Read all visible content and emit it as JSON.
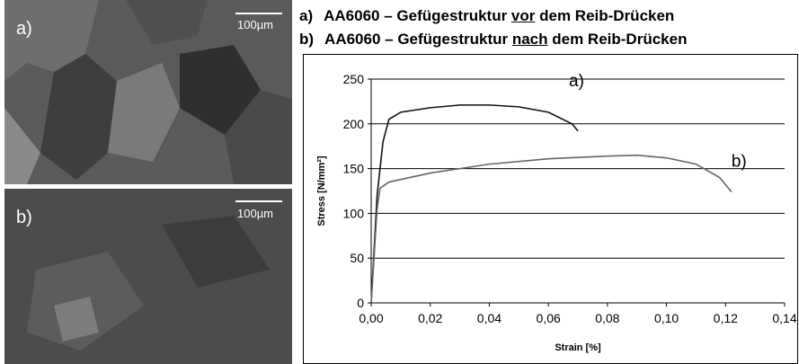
{
  "images": [
    {
      "label": "a)",
      "scale": "100µm"
    },
    {
      "label": "b)",
      "scale": "100µm"
    }
  ],
  "header": {
    "lines": [
      [
        "a)",
        "AA6060 – Gefügestruktur ",
        "vor",
        " dem Reib-Drücken"
      ],
      [
        "b)",
        "AA6060 – Gefügestruktur ",
        "nach",
        " dem Reib-Drücken"
      ]
    ]
  },
  "chart_data": {
    "type": "line",
    "x_label": "Strain [%]",
    "y_label": "Stress [N/mm²]",
    "xlim": [
      0,
      0.14
    ],
    "ylim": [
      0,
      250
    ],
    "xticks": [
      {
        "value": 0,
        "label": "0,00"
      },
      {
        "value": 0.02,
        "label": "0,02"
      },
      {
        "value": 0.04,
        "label": "0,04"
      },
      {
        "value": 0.06,
        "label": "0,06"
      },
      {
        "value": 0.08,
        "label": "0,08"
      },
      {
        "value": 0.1,
        "label": "0,10"
      },
      {
        "value": 0.12,
        "label": "0,12"
      },
      {
        "value": 0.14,
        "label": "0,14"
      }
    ],
    "yticks": [
      0,
      50,
      100,
      150,
      200,
      250
    ],
    "grid": true,
    "series": [
      {
        "color": "#111111",
        "annotation": "a)",
        "x": [
          0,
          0.002,
          0.004,
          0.006,
          0.01,
          0.02,
          0.03,
          0.04,
          0.05,
          0.06,
          0.068,
          0.07
        ],
        "values": [
          0,
          120,
          180,
          205,
          213,
          218,
          221,
          221,
          219,
          213,
          200,
          192
        ]
      },
      {
        "color": "#666666",
        "annotation": "b)",
        "x": [
          0,
          0.002,
          0.003,
          0.006,
          0.02,
          0.04,
          0.06,
          0.08,
          0.09,
          0.1,
          0.11,
          0.118,
          0.122
        ],
        "values": [
          0,
          105,
          128,
          135,
          145,
          155,
          161,
          164,
          165,
          162,
          155,
          140,
          124
        ]
      }
    ]
  }
}
